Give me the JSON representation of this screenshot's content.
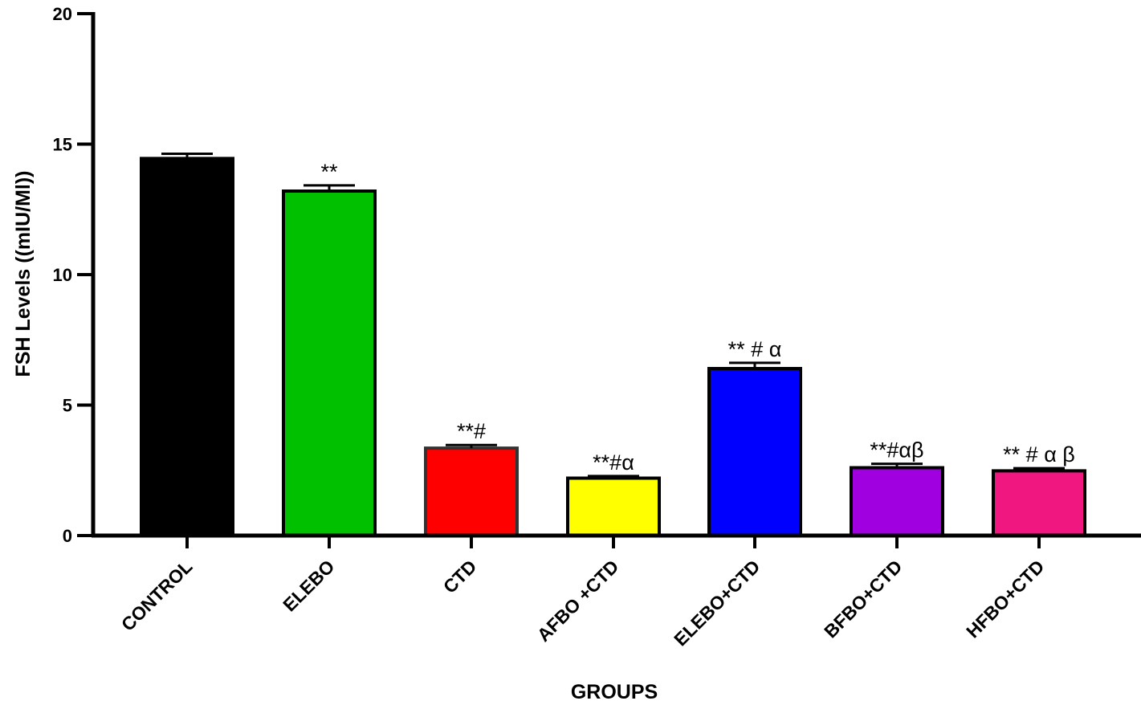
{
  "chart_data": {
    "type": "bar",
    "title": "",
    "xlabel": "GROUPS",
    "ylabel": "FSH Levels  ((mIU/Ml))",
    "ylim": [
      0,
      20
    ],
    "yticks": [
      0,
      5,
      10,
      15,
      20
    ],
    "grid": false,
    "categories": [
      "CONTROL",
      "ELEBO",
      "CTD",
      "AFBO +CTD",
      "ELEBO+CTD",
      "BFBO+CTD",
      "HFBO+CTD"
    ],
    "values": [
      14.45,
      13.2,
      3.35,
      2.2,
      6.4,
      2.6,
      2.48
    ],
    "errors": [
      0.18,
      0.22,
      0.12,
      0.08,
      0.22,
      0.15,
      0.1
    ],
    "annotations": [
      "",
      "**",
      "**#",
      "**#α",
      "** #  α",
      "**#αβ",
      "** #  α β"
    ],
    "colors": [
      "#000000",
      "#00c000",
      "#ff0000",
      "#ffff00",
      "#0000ff",
      "#a000e0",
      "#f01880"
    ]
  }
}
